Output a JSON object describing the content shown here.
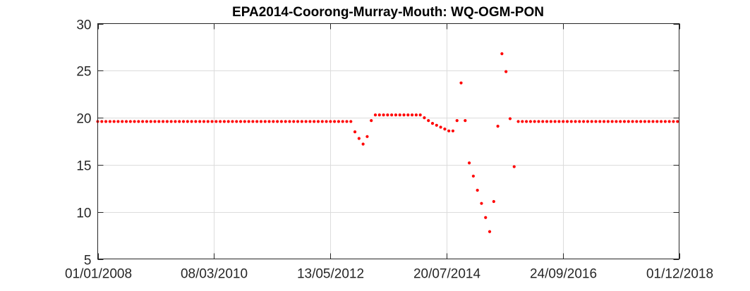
{
  "chart_data": {
    "type": "scatter",
    "title": "EPA2014-Coorong-Murray-Mouth: WQ-OGM-PON",
    "xlabel": "",
    "ylabel": "",
    "x_axis_type": "date",
    "xlim": [
      "2008-01-01",
      "2018-12-01"
    ],
    "ylim": [
      5,
      30
    ],
    "xticks": [
      "2008-01-01",
      "2010-03-08",
      "2012-05-13",
      "2014-07-20",
      "2016-09-24",
      "2018-12-01"
    ],
    "xtick_labels": [
      "01/01/2008",
      "08/03/2010",
      "13/05/2012",
      "20/07/2014",
      "24/09/2016",
      "01/12/2018"
    ],
    "yticks": [
      5,
      10,
      15,
      20,
      25,
      30
    ],
    "ytick_labels": [
      "5",
      "10",
      "15",
      "20",
      "25",
      "30"
    ],
    "grid": true,
    "legend": "none",
    "marker_color": "#ff0000",
    "series": [
      {
        "points": [
          [
            "2008-01-01",
            19.6
          ],
          [
            "2008-01-29",
            19.6
          ],
          [
            "2008-02-26",
            19.6
          ],
          [
            "2008-03-25",
            19.6
          ],
          [
            "2008-04-22",
            19.6
          ],
          [
            "2008-05-20",
            19.6
          ],
          [
            "2008-06-17",
            19.6
          ],
          [
            "2008-07-15",
            19.6
          ],
          [
            "2008-08-12",
            19.6
          ],
          [
            "2008-09-09",
            19.6
          ],
          [
            "2008-10-07",
            19.6
          ],
          [
            "2008-11-04",
            19.6
          ],
          [
            "2008-12-02",
            19.6
          ],
          [
            "2008-12-30",
            19.6
          ],
          [
            "2009-01-27",
            19.6
          ],
          [
            "2009-02-24",
            19.6
          ],
          [
            "2009-03-24",
            19.6
          ],
          [
            "2009-04-21",
            19.6
          ],
          [
            "2009-05-19",
            19.6
          ],
          [
            "2009-06-16",
            19.6
          ],
          [
            "2009-07-14",
            19.6
          ],
          [
            "2009-08-11",
            19.6
          ],
          [
            "2009-09-08",
            19.6
          ],
          [
            "2009-10-06",
            19.6
          ],
          [
            "2009-11-03",
            19.6
          ],
          [
            "2009-12-01",
            19.6
          ],
          [
            "2009-12-29",
            19.6
          ],
          [
            "2010-01-26",
            19.6
          ],
          [
            "2010-02-23",
            19.6
          ],
          [
            "2010-03-23",
            19.6
          ],
          [
            "2010-04-20",
            19.6
          ],
          [
            "2010-05-18",
            19.6
          ],
          [
            "2010-06-15",
            19.6
          ],
          [
            "2010-07-13",
            19.6
          ],
          [
            "2010-08-10",
            19.6
          ],
          [
            "2010-09-07",
            19.6
          ],
          [
            "2010-10-05",
            19.6
          ],
          [
            "2010-11-02",
            19.6
          ],
          [
            "2010-11-30",
            19.6
          ],
          [
            "2010-12-28",
            19.6
          ],
          [
            "2011-01-25",
            19.6
          ],
          [
            "2011-02-22",
            19.6
          ],
          [
            "2011-03-22",
            19.6
          ],
          [
            "2011-04-19",
            19.6
          ],
          [
            "2011-05-17",
            19.6
          ],
          [
            "2011-06-14",
            19.6
          ],
          [
            "2011-07-12",
            19.6
          ],
          [
            "2011-08-09",
            19.6
          ],
          [
            "2011-09-06",
            19.6
          ],
          [
            "2011-10-04",
            19.6
          ],
          [
            "2011-11-01",
            19.6
          ],
          [
            "2011-11-29",
            19.6
          ],
          [
            "2011-12-27",
            19.6
          ],
          [
            "2012-01-24",
            19.6
          ],
          [
            "2012-02-21",
            19.6
          ],
          [
            "2012-03-20",
            19.6
          ],
          [
            "2012-04-17",
            19.6
          ],
          [
            "2012-05-15",
            19.6
          ],
          [
            "2012-06-12",
            19.6
          ],
          [
            "2012-07-10",
            19.6
          ],
          [
            "2012-08-07",
            19.6
          ],
          [
            "2012-09-04",
            19.6
          ],
          [
            "2012-10-02",
            19.6
          ],
          [
            "2012-10-30",
            18.5
          ],
          [
            "2012-11-27",
            17.8
          ],
          [
            "2012-12-25",
            17.2
          ],
          [
            "2013-01-22",
            18.0
          ],
          [
            "2013-02-19",
            19.7
          ],
          [
            "2013-03-19",
            20.3
          ],
          [
            "2013-04-16",
            20.3
          ],
          [
            "2013-05-14",
            20.3
          ],
          [
            "2013-06-11",
            20.3
          ],
          [
            "2013-07-09",
            20.3
          ],
          [
            "2013-08-06",
            20.3
          ],
          [
            "2013-09-03",
            20.3
          ],
          [
            "2013-10-01",
            20.3
          ],
          [
            "2013-10-29",
            20.3
          ],
          [
            "2013-11-26",
            20.3
          ],
          [
            "2013-12-24",
            20.3
          ],
          [
            "2014-01-21",
            20.3
          ],
          [
            "2014-02-18",
            20.0
          ],
          [
            "2014-03-18",
            19.7
          ],
          [
            "2014-04-15",
            19.4
          ],
          [
            "2014-05-13",
            19.2
          ],
          [
            "2014-06-10",
            19.0
          ],
          [
            "2014-07-08",
            18.8
          ],
          [
            "2014-08-05",
            18.6
          ],
          [
            "2014-09-02",
            18.6
          ],
          [
            "2014-09-30",
            19.7
          ],
          [
            "2014-10-28",
            23.7
          ],
          [
            "2014-11-25",
            19.7
          ],
          [
            "2014-12-23",
            15.2
          ],
          [
            "2015-01-20",
            13.8
          ],
          [
            "2015-02-17",
            12.3
          ],
          [
            "2015-03-17",
            10.9
          ],
          [
            "2015-04-14",
            9.4
          ],
          [
            "2015-05-12",
            7.9
          ],
          [
            "2015-06-09",
            11.1
          ],
          [
            "2015-07-07",
            19.1
          ],
          [
            "2015-08-04",
            26.8
          ],
          [
            "2015-09-01",
            24.9
          ],
          [
            "2015-09-29",
            19.9
          ],
          [
            "2015-10-27",
            14.8
          ],
          [
            "2015-11-24",
            19.6
          ],
          [
            "2015-12-22",
            19.6
          ],
          [
            "2016-01-19",
            19.6
          ],
          [
            "2016-02-16",
            19.6
          ],
          [
            "2016-03-15",
            19.6
          ],
          [
            "2016-04-12",
            19.6
          ],
          [
            "2016-05-10",
            19.6
          ],
          [
            "2016-06-07",
            19.6
          ],
          [
            "2016-07-05",
            19.6
          ],
          [
            "2016-08-02",
            19.6
          ],
          [
            "2016-08-30",
            19.6
          ],
          [
            "2016-09-27",
            19.6
          ],
          [
            "2016-10-25",
            19.6
          ],
          [
            "2016-11-22",
            19.6
          ],
          [
            "2016-12-20",
            19.6
          ],
          [
            "2017-01-17",
            19.6
          ],
          [
            "2017-02-14",
            19.6
          ],
          [
            "2017-03-14",
            19.6
          ],
          [
            "2017-04-11",
            19.6
          ],
          [
            "2017-05-09",
            19.6
          ],
          [
            "2017-06-06",
            19.6
          ],
          [
            "2017-07-04",
            19.6
          ],
          [
            "2017-08-01",
            19.6
          ],
          [
            "2017-08-29",
            19.6
          ],
          [
            "2017-09-26",
            19.6
          ],
          [
            "2017-10-24",
            19.6
          ],
          [
            "2017-11-21",
            19.6
          ],
          [
            "2017-12-19",
            19.6
          ],
          [
            "2018-01-16",
            19.6
          ],
          [
            "2018-02-13",
            19.6
          ],
          [
            "2018-03-13",
            19.6
          ],
          [
            "2018-04-10",
            19.6
          ],
          [
            "2018-05-08",
            19.6
          ],
          [
            "2018-06-05",
            19.6
          ],
          [
            "2018-07-03",
            19.6
          ],
          [
            "2018-07-31",
            19.6
          ],
          [
            "2018-08-28",
            19.6
          ],
          [
            "2018-09-25",
            19.6
          ],
          [
            "2018-10-23",
            19.6
          ],
          [
            "2018-11-20",
            19.6
          ]
        ]
      }
    ]
  }
}
